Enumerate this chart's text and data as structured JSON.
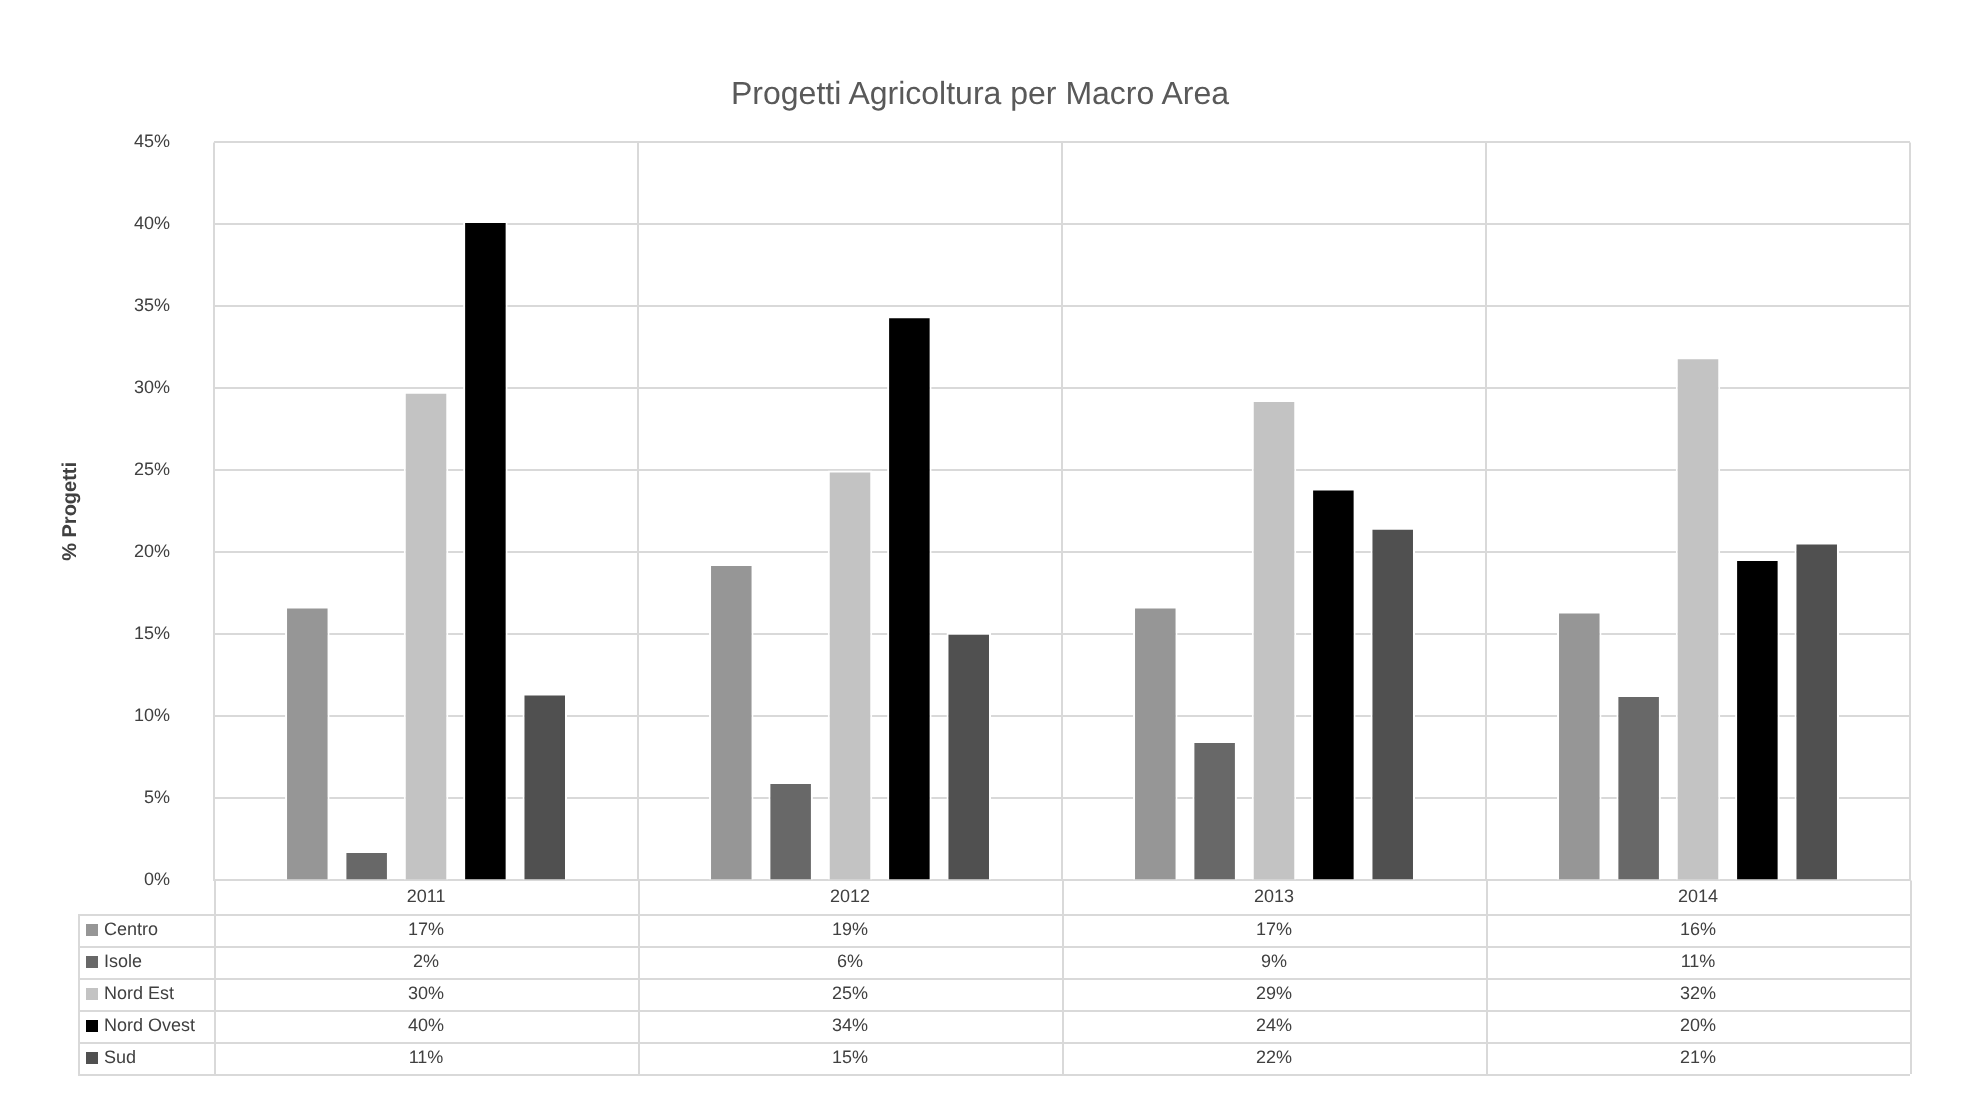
{
  "chart_data": {
    "type": "bar",
    "title": "Progetti Agricoltura per Macro Area",
    "ylabel": "% Progetti",
    "categories": [
      "2011",
      "2012",
      "2013",
      "2014"
    ],
    "series": [
      {
        "name": "Centro",
        "color": "#969696",
        "values": [
          16.7,
          19.3,
          16.7,
          16.4
        ],
        "value_labels": [
          "17%",
          "19%",
          "17%",
          "16%"
        ]
      },
      {
        "name": "Isole",
        "color": "#686868",
        "values": [
          1.8,
          6.0,
          8.5,
          11.3
        ],
        "value_labels": [
          "2%",
          "6%",
          "9%",
          "11%"
        ]
      },
      {
        "name": "Nord Est",
        "color": "#c3c3c3",
        "values": [
          29.8,
          25.0,
          29.3,
          31.9
        ],
        "value_labels": [
          "30%",
          "25%",
          "29%",
          "32%"
        ]
      },
      {
        "name": "Nord Ovest",
        "color": "#000000",
        "values": [
          40.2,
          34.4,
          23.9,
          19.6
        ],
        "value_labels": [
          "40%",
          "34%",
          "24%",
          "20%"
        ]
      },
      {
        "name": "Sud",
        "color": "#505050",
        "values": [
          11.4,
          15.1,
          21.5,
          20.6
        ],
        "value_labels": [
          "11%",
          "15%",
          "22%",
          "21%"
        ]
      }
    ],
    "ylim": [
      0,
      45
    ],
    "yticks": [
      {
        "value": 0,
        "label": "0%"
      },
      {
        "value": 5,
        "label": "5%"
      },
      {
        "value": 10,
        "label": "10%"
      },
      {
        "value": 15,
        "label": "15%"
      },
      {
        "value": 20,
        "label": "20%"
      },
      {
        "value": 25,
        "label": "25%"
      },
      {
        "value": 30,
        "label": "30%"
      },
      {
        "value": 35,
        "label": "35%"
      },
      {
        "value": 40,
        "label": "40%"
      },
      {
        "value": 45,
        "label": "45%"
      }
    ],
    "grid": true,
    "legend": "bottom left"
  }
}
